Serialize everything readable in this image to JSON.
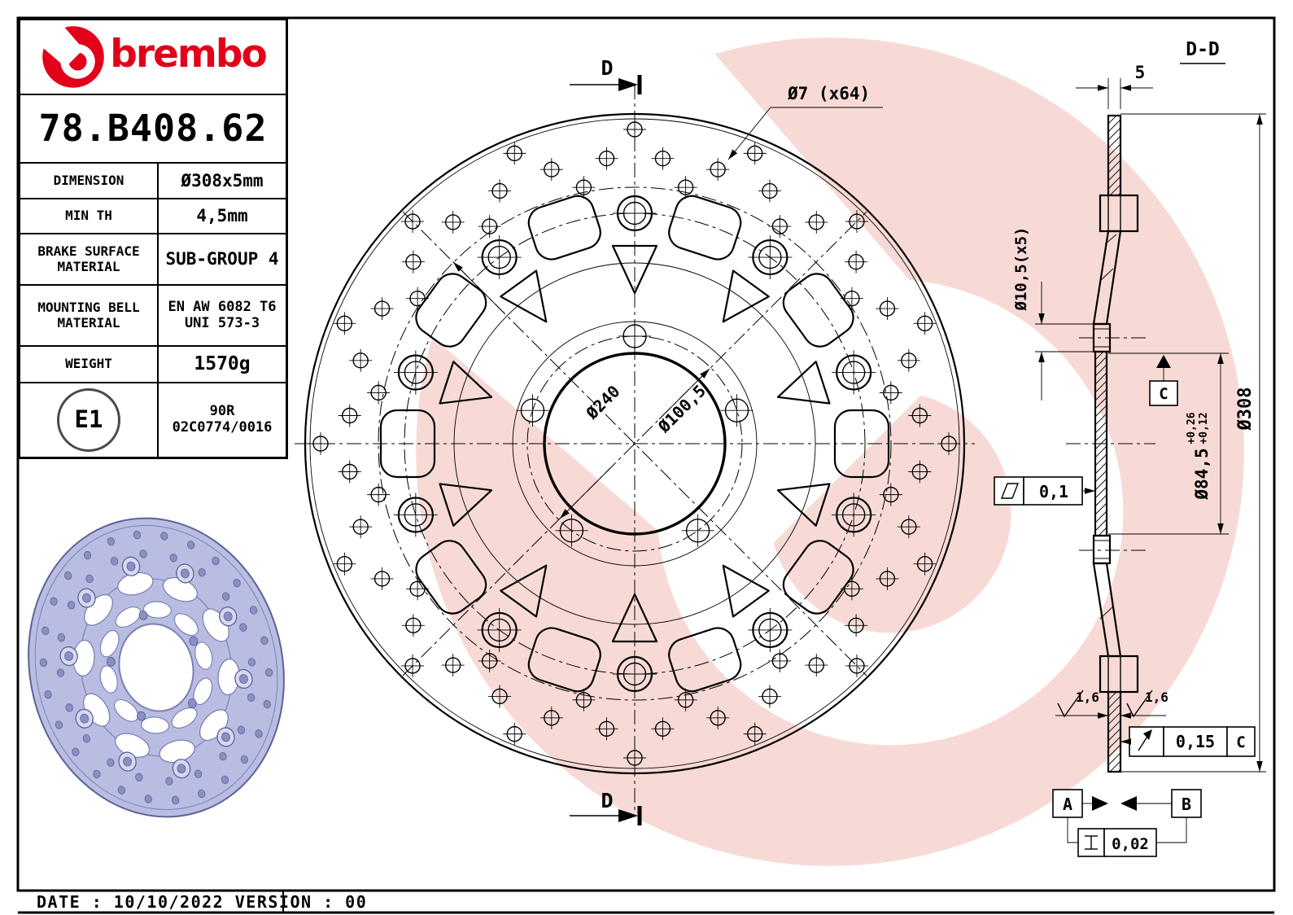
{
  "colors": {
    "brand_red": "#e2001a",
    "watermark_pink": "#f7dad6",
    "line_black": "#000000",
    "render_lavender": "#b9bde2"
  },
  "title_block": {
    "brand_wordmark": "brembo",
    "part_number": "78.B408.62",
    "dimension_label": "DIMENSION",
    "dimension_value": "Ø308x5mm",
    "min_th_label": "MIN TH",
    "min_th_value": "4,5mm",
    "brake_surface_label_line1": "BRAKE SURFACE",
    "brake_surface_label_line2": "MATERIAL",
    "brake_surface_value": "SUB-GROUP 4",
    "mounting_bell_label_line1": "MOUNTING BELL",
    "mounting_bell_label_line2": "MATERIAL",
    "mounting_bell_value_line1": "EN AW 6082 T6",
    "mounting_bell_value_line2": "UNI 573-3",
    "weight_label": "WEIGHT",
    "weight_value": "1570g",
    "homologation_mark": "E1",
    "homologation_value_line1": "90R",
    "homologation_value_line2": "02C0774/0016"
  },
  "front_view": {
    "hole_callout": "Ø7 (x64)",
    "band_inner_diameter": "Ø240",
    "bolt_circle_diameter": "Ø100,5",
    "section_marker_top": "D",
    "section_marker_bottom": "D"
  },
  "section_view": {
    "title": "D-D",
    "thickness": "5",
    "bell_hole_callout": "Ø10,5(x5)",
    "flatness_tolerance": "0,1",
    "bore_diameter": "Ø84,5",
    "bore_tolerance_upper": "+0,26",
    "bore_tolerance_lower": "+0,12",
    "outer_diameter": "Ø308",
    "roughness_left": "1,6",
    "roughness_right": "1,6",
    "runout_tolerance": "0,15",
    "runout_datum": "C",
    "datum_c": "C",
    "datum_a": "A",
    "datum_b": "B",
    "parallelism_tolerance": "0,02"
  },
  "footer": {
    "date_line": "DATE : 10/10/2022 VERSION : 00"
  }
}
